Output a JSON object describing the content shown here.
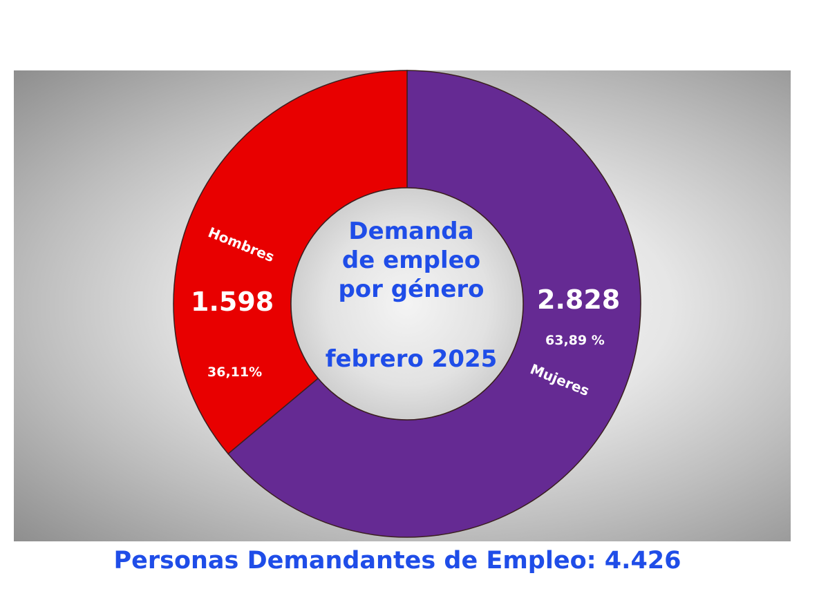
{
  "chart_data": {
    "type": "pie",
    "subtype": "donut",
    "title_lines": [
      "Demanda",
      "de empleo",
      "por género"
    ],
    "subtitle": "febrero 2025",
    "categories": [
      "Hombres",
      "Mujeres"
    ],
    "values": [
      1598,
      2828
    ],
    "value_labels": [
      "1.598",
      "2.828"
    ],
    "percent_labels": [
      "36,11%",
      "63,89 %"
    ],
    "percents": [
      36.11,
      63.89
    ],
    "colors": [
      "#e80000",
      "#652a93"
    ],
    "legend": "none"
  },
  "footer": {
    "total_text": "Personas Demandantes de Empleo: 4.426"
  }
}
